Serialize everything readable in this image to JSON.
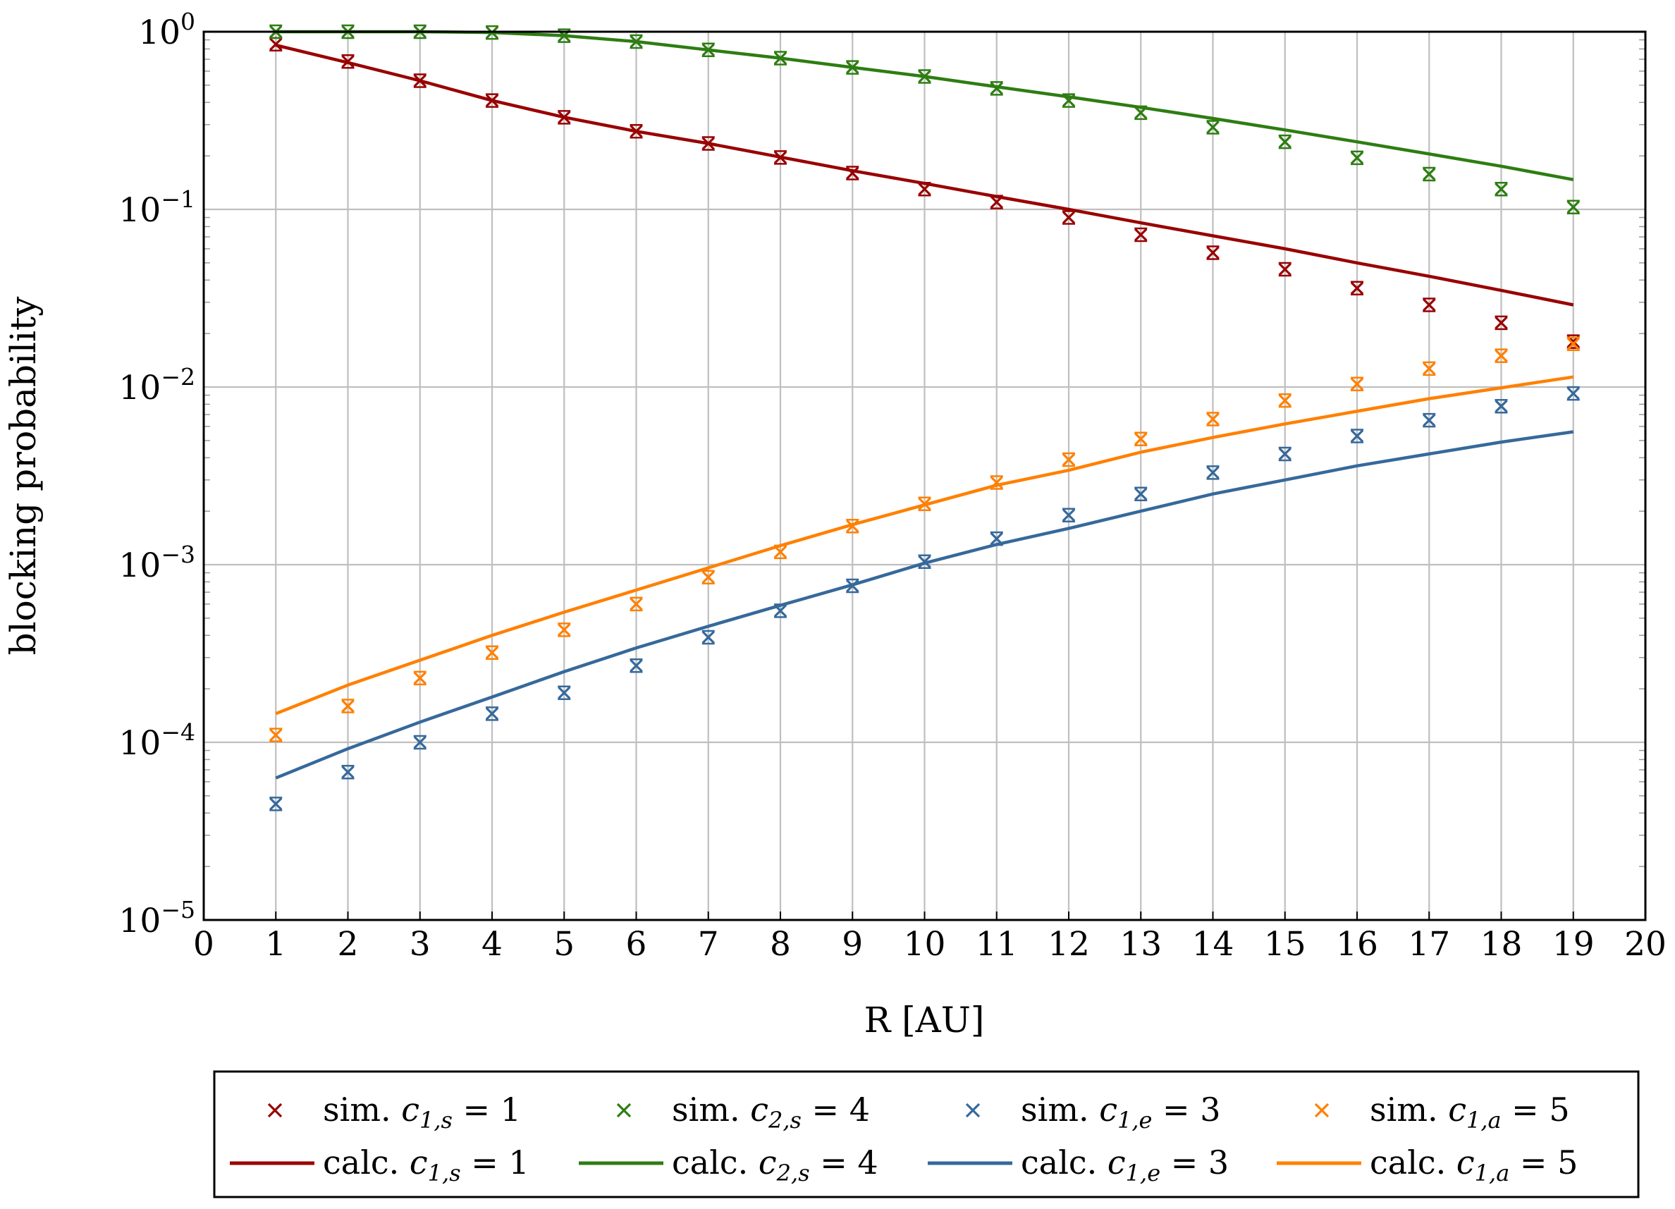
{
  "chart_data": {
    "type": "line",
    "title": "",
    "xlabel": "R [AU]",
    "ylabel": "blocking probability",
    "xlim": [
      0,
      20
    ],
    "ylim": [
      1e-05,
      1
    ],
    "yscale": "log",
    "grid": true,
    "xticks": [
      "0",
      "1",
      "2",
      "3",
      "4",
      "5",
      "6",
      "7",
      "8",
      "9",
      "10",
      "11",
      "12",
      "13",
      "14",
      "15",
      "16",
      "17",
      "18",
      "19",
      "20"
    ],
    "yticks": [
      {
        "value": 1,
        "base": "10",
        "exp": "0"
      },
      {
        "value": 0.1,
        "base": "10",
        "exp": "−1"
      },
      {
        "value": 0.01,
        "base": "10",
        "exp": "−2"
      },
      {
        "value": 0.001,
        "base": "10",
        "exp": "−3"
      },
      {
        "value": 0.0001,
        "base": "10",
        "exp": "−4"
      },
      {
        "value": 1e-05,
        "base": "10",
        "exp": "−5"
      }
    ],
    "x": [
      1,
      2,
      3,
      4,
      5,
      6,
      7,
      8,
      9,
      10,
      11,
      12,
      13,
      14,
      15,
      16,
      17,
      18,
      19
    ],
    "legend_position": "bottom",
    "series": [
      {
        "name": "sim. c1,s = 1",
        "kind": "marker",
        "color": "#990000",
        "legend_prefix": "sim.",
        "legend_var": "c",
        "legend_sub": "1,s",
        "legend_value": "= 1",
        "values": [
          0.85,
          0.68,
          0.53,
          0.41,
          0.33,
          0.275,
          0.235,
          0.196,
          0.16,
          0.13,
          0.11,
          0.09,
          0.072,
          0.057,
          0.046,
          0.036,
          0.029,
          0.023,
          0.018
        ]
      },
      {
        "name": "sim. c2,s = 4",
        "kind": "marker",
        "color": "#2e7d12",
        "legend_prefix": "sim.",
        "legend_var": "c",
        "legend_sub": "2,s",
        "legend_value": "= 4",
        "values": [
          1.0,
          1.0,
          1.0,
          0.99,
          0.95,
          0.88,
          0.79,
          0.71,
          0.63,
          0.56,
          0.48,
          0.41,
          0.35,
          0.29,
          0.24,
          0.195,
          0.158,
          0.13,
          0.103
        ]
      },
      {
        "name": "sim. c1,e = 3",
        "kind": "marker",
        "color": "#36699b",
        "legend_prefix": "sim.",
        "legend_var": "c",
        "legend_sub": "1,e",
        "legend_value": "= 3",
        "values": [
          4.5e-05,
          6.8e-05,
          0.0001,
          0.000145,
          0.00019,
          0.00027,
          0.00039,
          0.00055,
          0.00076,
          0.00104,
          0.0014,
          0.0019,
          0.0025,
          0.0033,
          0.0042,
          0.0053,
          0.0065,
          0.0078,
          0.0092
        ]
      },
      {
        "name": "sim. c1,a = 5",
        "kind": "marker",
        "color": "#ff8000",
        "legend_prefix": "sim.",
        "legend_var": "c",
        "legend_sub": "1,a",
        "legend_value": "= 5",
        "values": [
          0.00011,
          0.00016,
          0.00023,
          0.00032,
          0.00043,
          0.0006,
          0.00085,
          0.00118,
          0.00165,
          0.0022,
          0.0029,
          0.0039,
          0.0051,
          0.0066,
          0.0084,
          0.0104,
          0.0127,
          0.015,
          0.0175
        ]
      },
      {
        "name": "calc. c1,s = 1",
        "kind": "line",
        "color": "#990000",
        "legend_prefix": "calc.",
        "legend_var": "c",
        "legend_sub": "1,s",
        "legend_value": "= 1",
        "values": [
          0.84,
          0.67,
          0.53,
          0.41,
          0.33,
          0.275,
          0.235,
          0.197,
          0.165,
          0.14,
          0.118,
          0.1,
          0.084,
          0.071,
          0.06,
          0.05,
          0.042,
          0.035,
          0.029
        ]
      },
      {
        "name": "calc. c2,s = 4",
        "kind": "line",
        "color": "#2e7d12",
        "legend_prefix": "calc.",
        "legend_var": "c",
        "legend_sub": "2,s",
        "legend_value": "= 4",
        "values": [
          1.0,
          1.0,
          1.0,
          0.99,
          0.95,
          0.88,
          0.79,
          0.71,
          0.63,
          0.56,
          0.49,
          0.43,
          0.375,
          0.325,
          0.28,
          0.24,
          0.205,
          0.175,
          0.147
        ]
      },
      {
        "name": "calc. c1,e = 3",
        "kind": "line",
        "color": "#36699b",
        "legend_prefix": "calc.",
        "legend_var": "c",
        "legend_sub": "1,e",
        "legend_value": "= 3",
        "values": [
          6.3e-05,
          9.2e-05,
          0.00013,
          0.00018,
          0.00025,
          0.00034,
          0.00045,
          0.00059,
          0.00077,
          0.00102,
          0.0013,
          0.0016,
          0.002,
          0.0025,
          0.003,
          0.0036,
          0.0042,
          0.0049,
          0.0056
        ]
      },
      {
        "name": "calc. c1,a = 5",
        "kind": "line",
        "color": "#ff8000",
        "legend_prefix": "calc.",
        "legend_var": "c",
        "legend_sub": "1,a",
        "legend_value": "= 5",
        "values": [
          0.000145,
          0.00021,
          0.00029,
          0.0004,
          0.00054,
          0.00072,
          0.00096,
          0.00128,
          0.00168,
          0.00217,
          0.0028,
          0.0034,
          0.0043,
          0.0052,
          0.0062,
          0.0073,
          0.0086,
          0.0099,
          0.0114
        ]
      }
    ]
  }
}
